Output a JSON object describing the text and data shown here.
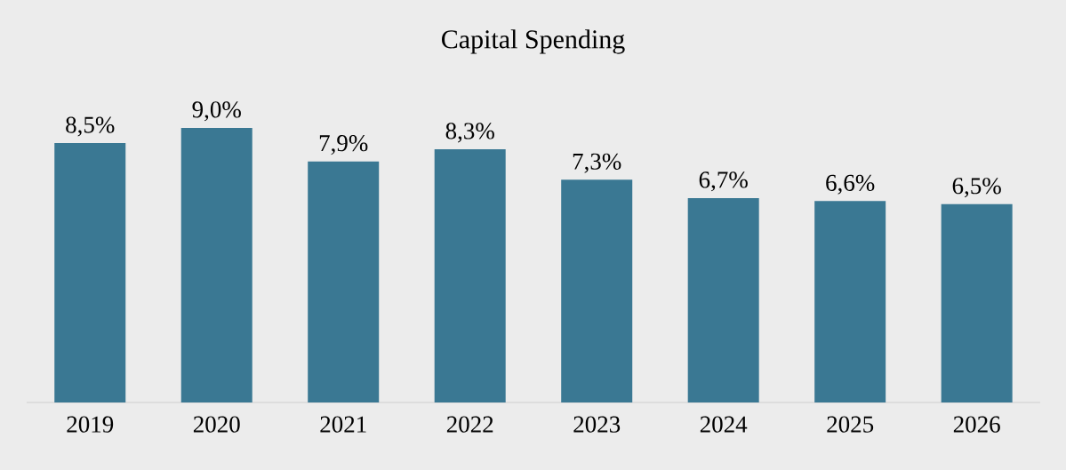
{
  "chart_data": {
    "type": "bar",
    "title": "Capital Spending",
    "categories": [
      "2019",
      "2020",
      "2021",
      "2022",
      "2023",
      "2024",
      "2025",
      "2026"
    ],
    "values": [
      8.5,
      9.0,
      7.9,
      8.3,
      7.3,
      6.7,
      6.6,
      6.5
    ],
    "value_labels": [
      "8,5%",
      "9,0%",
      "7,9%",
      "8,3%",
      "7,3%",
      "6,7%",
      "6,6%",
      "6,5%"
    ],
    "color": "#3a7893"
  }
}
